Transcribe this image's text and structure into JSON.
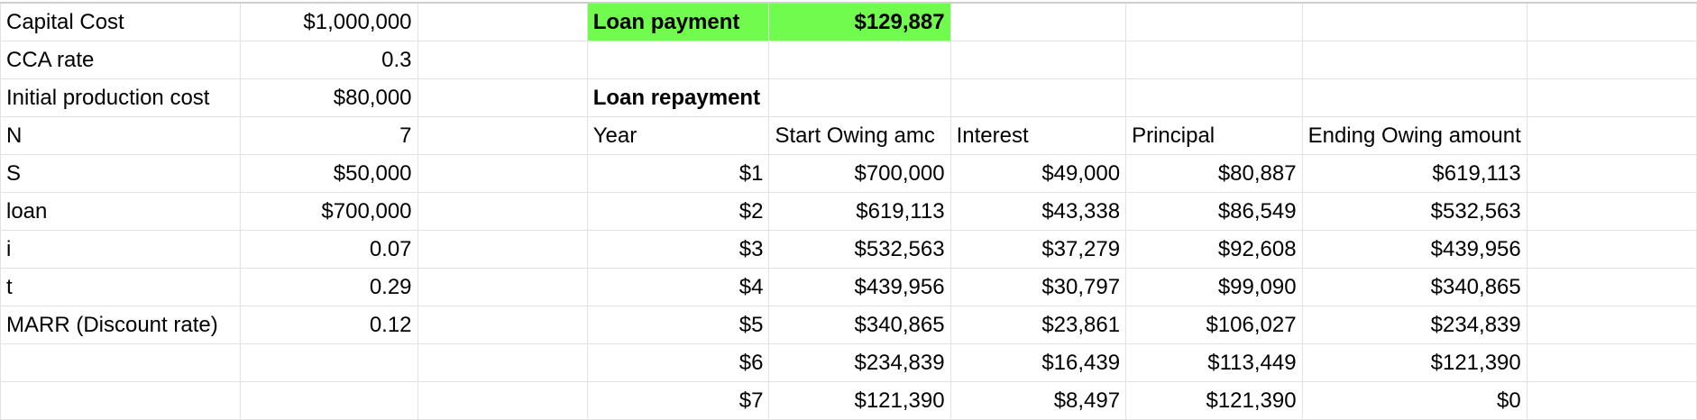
{
  "params": [
    {
      "label": "Capital Cost",
      "value": "$1,000,000"
    },
    {
      "label": "CCA rate",
      "value": "0.3"
    },
    {
      "label": "Initial production cost",
      "value": "$80,000"
    },
    {
      "label": "N",
      "value": "7"
    },
    {
      "label": "S",
      "value": "$50,000"
    },
    {
      "label": "loan",
      "value": "$700,000"
    },
    {
      "label": "i",
      "value": "0.07"
    },
    {
      "label": "t",
      "value": "0.29"
    },
    {
      "label": "MARR (Discount rate)",
      "value": "0.12"
    }
  ],
  "loan_payment": {
    "label": "Loan payment",
    "value": "$129,887",
    "highlight_color": "#71fb4e"
  },
  "repayment": {
    "title": "Loan repayment",
    "headers": [
      "Year",
      "Start Owing amc",
      "Interest",
      "Principal",
      "Ending Owing amount"
    ],
    "rows": [
      [
        "$1",
        "$700,000",
        "$49,000",
        "$80,887",
        "$619,113"
      ],
      [
        "$2",
        "$619,113",
        "$43,338",
        "$86,549",
        "$532,563"
      ],
      [
        "$3",
        "$532,563",
        "$37,279",
        "$92,608",
        "$439,956"
      ],
      [
        "$4",
        "$439,956",
        "$30,797",
        "$99,090",
        "$340,865"
      ],
      [
        "$5",
        "$340,865",
        "$23,861",
        "$106,027",
        "$234,839"
      ],
      [
        "$6",
        "$234,839",
        "$16,439",
        "$113,449",
        "$121,390"
      ],
      [
        "$7",
        "$121,390",
        "$8,497",
        "$121,390",
        "$0"
      ]
    ]
  }
}
